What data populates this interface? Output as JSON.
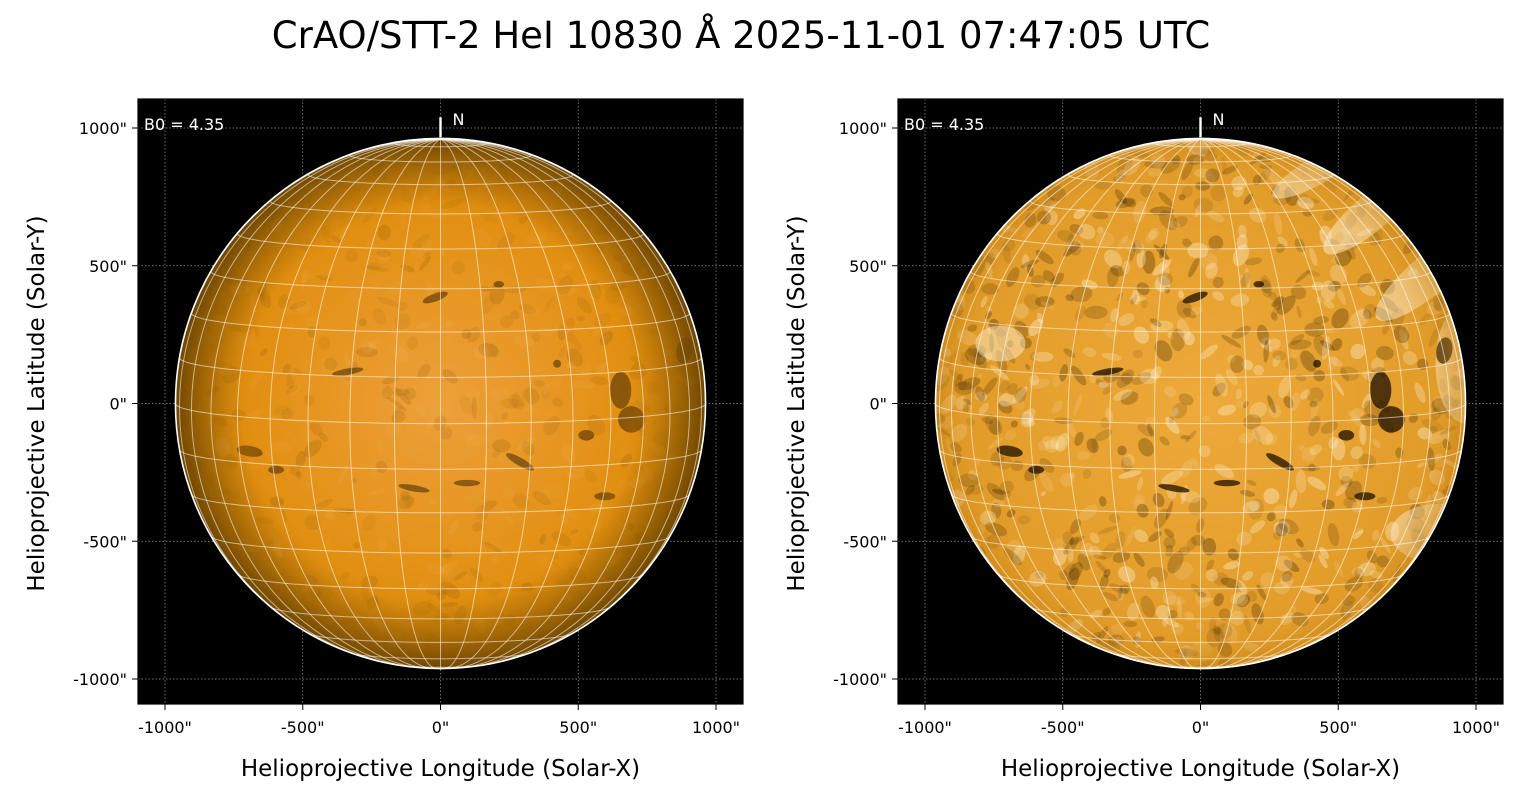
{
  "figure": {
    "title": "CrAO/STT-2 HeI 10830 Å 2025-11-01 07:47:05 UTC",
    "colors": {
      "background": "#000000",
      "disk_base": "#e69500",
      "grid": "#ffffff"
    }
  },
  "panels": [
    {
      "id": "left",
      "xlabel": "Helioprojective Longitude (Solar-X)",
      "ylabel": "Helioprojective Latitude (Solar-Y)",
      "b0_label": "B0 = 4.35",
      "north_label": "N",
      "contrast": "normal",
      "xticks": [
        {
          "v": -1000,
          "label": "-1000\""
        },
        {
          "v": -500,
          "label": "-500\""
        },
        {
          "v": 0,
          "label": "0\""
        },
        {
          "v": 500,
          "label": "500\""
        },
        {
          "v": 1000,
          "label": "1000\""
        }
      ],
      "yticks": [
        {
          "v": 1000,
          "label": "1000\""
        },
        {
          "v": 500,
          "label": "500\""
        },
        {
          "v": 0,
          "label": "0\""
        },
        {
          "v": -500,
          "label": "-500\""
        },
        {
          "v": -1000,
          "label": "-1000\""
        }
      ]
    },
    {
      "id": "right",
      "xlabel": "Helioprojective Longitude (Solar-X)",
      "ylabel": "Helioprojective Latitude (Solar-Y)",
      "b0_label": "B0 = 4.35",
      "north_label": "N",
      "contrast": "enhanced",
      "xticks": [
        {
          "v": -1000,
          "label": "-1000\""
        },
        {
          "v": -500,
          "label": "-500\""
        },
        {
          "v": 0,
          "label": "0\""
        },
        {
          "v": 500,
          "label": "500\""
        },
        {
          "v": 1000,
          "label": "1000\""
        }
      ],
      "yticks": [
        {
          "v": 1000,
          "label": "1000\""
        },
        {
          "v": 500,
          "label": "500\""
        },
        {
          "v": 0,
          "label": "0\""
        },
        {
          "v": -500,
          "label": "-500\""
        },
        {
          "v": -1000,
          "label": "-1000\""
        }
      ]
    }
  ]
}
